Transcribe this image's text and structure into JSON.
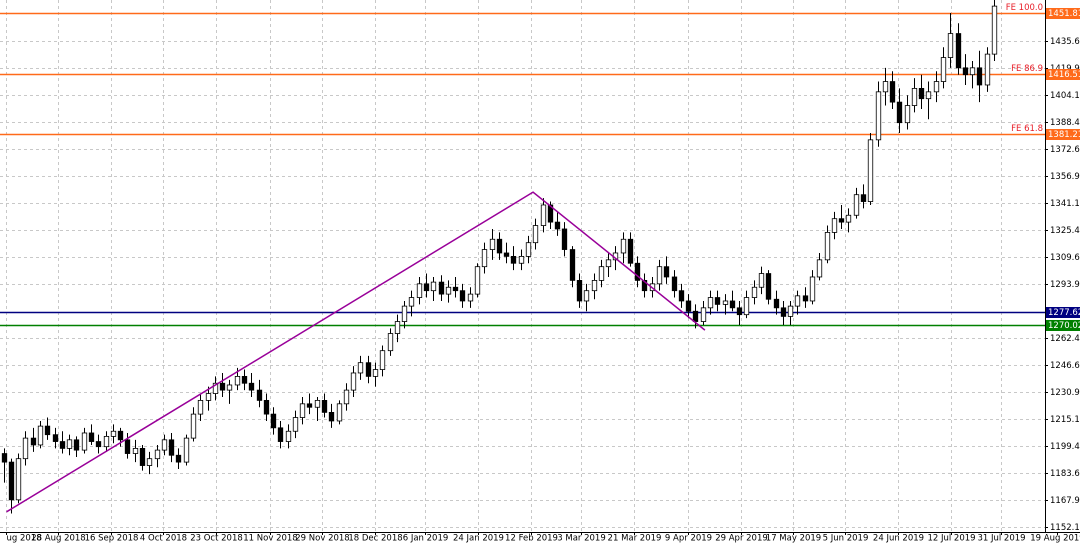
{
  "chart_data": {
    "type": "candlestick",
    "candles": [
      [
        1195,
        1198,
        1178,
        1190
      ],
      [
        1190,
        1192,
        1160,
        1168
      ],
      [
        1168,
        1195,
        1166,
        1192
      ],
      [
        1192,
        1208,
        1188,
        1204
      ],
      [
        1204,
        1210,
        1196,
        1200
      ],
      [
        1200,
        1214,
        1198,
        1211
      ],
      [
        1211,
        1216,
        1203,
        1206
      ],
      [
        1206,
        1210,
        1198,
        1202
      ],
      [
        1202,
        1208,
        1195,
        1198
      ],
      [
        1198,
        1206,
        1194,
        1203
      ],
      [
        1203,
        1205,
        1193,
        1197
      ],
      [
        1197,
        1210,
        1195,
        1207
      ],
      [
        1207,
        1212,
        1200,
        1202
      ],
      [
        1202,
        1206,
        1195,
        1199
      ],
      [
        1199,
        1208,
        1196,
        1205
      ],
      [
        1205,
        1212,
        1201,
        1208
      ],
      [
        1208,
        1210,
        1199,
        1203
      ],
      [
        1203,
        1207,
        1192,
        1195
      ],
      [
        1195,
        1203,
        1190,
        1198
      ],
      [
        1198,
        1200,
        1185,
        1188
      ],
      [
        1188,
        1196,
        1183,
        1192
      ],
      [
        1192,
        1200,
        1187,
        1197
      ],
      [
        1197,
        1206,
        1194,
        1203
      ],
      [
        1203,
        1207,
        1190,
        1194
      ],
      [
        1194,
        1198,
        1186,
        1190
      ],
      [
        1190,
        1206,
        1188,
        1204
      ],
      [
        1204,
        1222,
        1202,
        1218
      ],
      [
        1218,
        1230,
        1214,
        1226
      ],
      [
        1226,
        1234,
        1220,
        1230
      ],
      [
        1230,
        1240,
        1226,
        1236
      ],
      [
        1236,
        1242,
        1228,
        1232
      ],
      [
        1232,
        1238,
        1224,
        1235
      ],
      [
        1235,
        1245,
        1232,
        1240
      ],
      [
        1240,
        1244,
        1232,
        1236
      ],
      [
        1236,
        1242,
        1228,
        1232
      ],
      [
        1232,
        1238,
        1222,
        1226
      ],
      [
        1226,
        1230,
        1214,
        1218
      ],
      [
        1218,
        1222,
        1206,
        1210
      ],
      [
        1210,
        1214,
        1198,
        1202
      ],
      [
        1202,
        1212,
        1198,
        1208
      ],
      [
        1208,
        1220,
        1204,
        1216
      ],
      [
        1216,
        1228,
        1212,
        1224
      ],
      [
        1224,
        1230,
        1218,
        1222
      ],
      [
        1222,
        1228,
        1214,
        1226
      ],
      [
        1226,
        1230,
        1216,
        1219
      ],
      [
        1219,
        1224,
        1210,
        1214
      ],
      [
        1214,
        1226,
        1212,
        1224
      ],
      [
        1224,
        1236,
        1220,
        1232
      ],
      [
        1232,
        1246,
        1228,
        1242
      ],
      [
        1242,
        1252,
        1238,
        1248
      ],
      [
        1248,
        1252,
        1236,
        1240
      ],
      [
        1240,
        1248,
        1234,
        1244
      ],
      [
        1244,
        1258,
        1240,
        1255
      ],
      [
        1255,
        1268,
        1252,
        1265
      ],
      [
        1265,
        1276,
        1260,
        1272
      ],
      [
        1272,
        1284,
        1268,
        1281
      ],
      [
        1281,
        1290,
        1275,
        1286
      ],
      [
        1286,
        1298,
        1282,
        1294
      ],
      [
        1294,
        1300,
        1286,
        1290
      ],
      [
        1290,
        1298,
        1284,
        1295
      ],
      [
        1295,
        1299,
        1284,
        1288
      ],
      [
        1288,
        1296,
        1283,
        1292
      ],
      [
        1292,
        1298,
        1286,
        1290
      ],
      [
        1290,
        1294,
        1280,
        1284
      ],
      [
        1284,
        1292,
        1280,
        1288
      ],
      [
        1288,
        1306,
        1286,
        1304
      ],
      [
        1304,
        1318,
        1300,
        1314
      ],
      [
        1314,
        1326,
        1308,
        1320
      ],
      [
        1320,
        1324,
        1308,
        1312
      ],
      [
        1312,
        1318,
        1306,
        1310
      ],
      [
        1310,
        1316,
        1302,
        1306
      ],
      [
        1306,
        1314,
        1302,
        1310
      ],
      [
        1310,
        1322,
        1306,
        1318
      ],
      [
        1318,
        1332,
        1314,
        1328
      ],
      [
        1328,
        1344,
        1324,
        1340
      ],
      [
        1340,
        1342,
        1326,
        1330
      ],
      [
        1330,
        1336,
        1322,
        1326
      ],
      [
        1326,
        1330,
        1310,
        1314
      ],
      [
        1314,
        1316,
        1292,
        1296
      ],
      [
        1296,
        1300,
        1280,
        1284
      ],
      [
        1284,
        1294,
        1278,
        1290
      ],
      [
        1290,
        1300,
        1285,
        1296
      ],
      [
        1296,
        1308,
        1292,
        1304
      ],
      [
        1304,
        1312,
        1298,
        1308
      ],
      [
        1308,
        1316,
        1302,
        1312
      ],
      [
        1312,
        1324,
        1306,
        1320
      ],
      [
        1320,
        1324,
        1304,
        1306
      ],
      [
        1306,
        1310,
        1292,
        1296
      ],
      [
        1296,
        1300,
        1286,
        1290
      ],
      [
        1290,
        1298,
        1286,
        1294
      ],
      [
        1294,
        1308,
        1290,
        1304
      ],
      [
        1304,
        1310,
        1294,
        1298
      ],
      [
        1298,
        1302,
        1286,
        1290
      ],
      [
        1290,
        1294,
        1280,
        1284
      ],
      [
        1284,
        1288,
        1274,
        1278
      ],
      [
        1278,
        1282,
        1268,
        1272
      ],
      [
        1272,
        1284,
        1270,
        1280
      ],
      [
        1280,
        1290,
        1276,
        1286
      ],
      [
        1286,
        1290,
        1278,
        1282
      ],
      [
        1282,
        1288,
        1276,
        1284
      ],
      [
        1284,
        1290,
        1278,
        1280
      ],
      [
        1280,
        1284,
        1270,
        1276
      ],
      [
        1276,
        1290,
        1274,
        1286
      ],
      [
        1286,
        1296,
        1282,
        1292
      ],
      [
        1292,
        1304,
        1288,
        1300
      ],
      [
        1300,
        1302,
        1282,
        1285
      ],
      [
        1285,
        1290,
        1276,
        1280
      ],
      [
        1280,
        1284,
        1270,
        1275
      ],
      [
        1275,
        1284,
        1270,
        1281
      ],
      [
        1281,
        1290,
        1276,
        1287
      ],
      [
        1287,
        1292,
        1280,
        1284
      ],
      [
        1284,
        1302,
        1282,
        1298
      ],
      [
        1298,
        1312,
        1296,
        1308
      ],
      [
        1308,
        1328,
        1306,
        1324
      ],
      [
        1324,
        1336,
        1320,
        1332
      ],
      [
        1332,
        1340,
        1326,
        1330
      ],
      [
        1330,
        1338,
        1324,
        1334
      ],
      [
        1334,
        1350,
        1332,
        1346
      ],
      [
        1346,
        1352,
        1338,
        1342
      ],
      [
        1342,
        1382,
        1340,
        1378
      ],
      [
        1378,
        1412,
        1374,
        1406
      ],
      [
        1406,
        1420,
        1398,
        1412
      ],
      [
        1412,
        1418,
        1396,
        1400
      ],
      [
        1400,
        1408,
        1382,
        1388
      ],
      [
        1388,
        1404,
        1384,
        1398
      ],
      [
        1398,
        1414,
        1394,
        1408
      ],
      [
        1408,
        1416,
        1396,
        1402
      ],
      [
        1402,
        1412,
        1390,
        1406
      ],
      [
        1406,
        1418,
        1400,
        1412
      ],
      [
        1412,
        1432,
        1408,
        1426
      ],
      [
        1426,
        1452,
        1420,
        1440
      ],
      [
        1440,
        1446,
        1416,
        1420
      ],
      [
        1420,
        1428,
        1410,
        1416
      ],
      [
        1416,
        1424,
        1408,
        1420
      ],
      [
        1420,
        1430,
        1400,
        1410
      ],
      [
        1410,
        1432,
        1406,
        1428
      ],
      [
        1428,
        1460,
        1424,
        1456
      ]
    ],
    "up_color": "#ffffff",
    "down_color": "#000000",
    "xlim": [
      -0.5,
      143
    ],
    "xticks": [
      {
        "value": 0.3,
        "label": "ug 2018"
      },
      {
        "value": 7.5,
        "label": "28 Aug 2018"
      },
      {
        "value": 14.7,
        "label": "16 Sep 2018"
      },
      {
        "value": 21.9,
        "label": "4 Oct 2018"
      },
      {
        "value": 29.2,
        "label": "23 Oct 2018"
      },
      {
        "value": 36.6,
        "label": "11 Nov 2018"
      },
      {
        "value": 43.7,
        "label": "29 Nov 2018"
      },
      {
        "value": 51.0,
        "label": "18 Dec 2018"
      },
      {
        "value": 57.9,
        "label": "6 Jan 2019"
      },
      {
        "value": 65.1,
        "label": "24 Jan 2019"
      },
      {
        "value": 72.4,
        "label": "12 Feb 2019"
      },
      {
        "value": 79.3,
        "label": "3 Mar 2019"
      },
      {
        "value": 86.5,
        "label": "21 Mar 2019"
      },
      {
        "value": 94.0,
        "label": "9 Apr 2019"
      },
      {
        "value": 101.2,
        "label": "29 Apr 2019"
      },
      {
        "value": 108.4,
        "label": "17 May 2019"
      },
      {
        "value": 115.5,
        "label": "5 Jun 2019"
      },
      {
        "value": 122.8,
        "label": "24 Jun 2019"
      },
      {
        "value": 130.1,
        "label": "12 Jul 2019"
      },
      {
        "value": 137.0,
        "label": "31 Jul 2019"
      },
      {
        "value": 144.6,
        "label": "19 Aug 2019"
      }
    ],
    "ylim": [
      1149.23,
      1459.57
    ],
    "yticks": [
      1435.65,
      {
        "value": 1419.9,
        "label": "1419.90"
      },
      1404.15,
      {
        "value": 1388.4,
        "label": "1388.40"
      },
      1372.65,
      {
        "value": 1356.9,
        "label": "1356.90"
      },
      1341.15,
      {
        "value": 1325.4,
        "label": "1325.40"
      },
      1309.65,
      {
        "value": 1293.9,
        "label": "1293.90"
      },
      {
        "value": 1262.4,
        "label": "1262.40"
      },
      1246.65,
      {
        "value": 1230.9,
        "label": "1230.90"
      },
      1215.15,
      1199.4,
      1183.65,
      {
        "value": 1167.9,
        "label": "1167.90"
      },
      1152.15
    ],
    "grid": true,
    "levels": [
      {
        "name": "FE 100.0",
        "value": 1451.81,
        "color": "#ff6a1a"
      },
      {
        "name": "FE 86.9",
        "value": 1416.51,
        "color": "#ff6a1a"
      },
      {
        "name": "FE 61.8",
        "value": 1381.21,
        "color": "#ff6a1a"
      },
      {
        "value": 1277.62,
        "color": "#000080"
      },
      {
        "value": 1270.02,
        "color": "#008000"
      }
    ],
    "trendline": {
      "color": "#990099",
      "x": [
        0.4,
        72.7,
        96.3
      ],
      "y": [
        1161,
        1347.5,
        1267
      ]
    }
  }
}
